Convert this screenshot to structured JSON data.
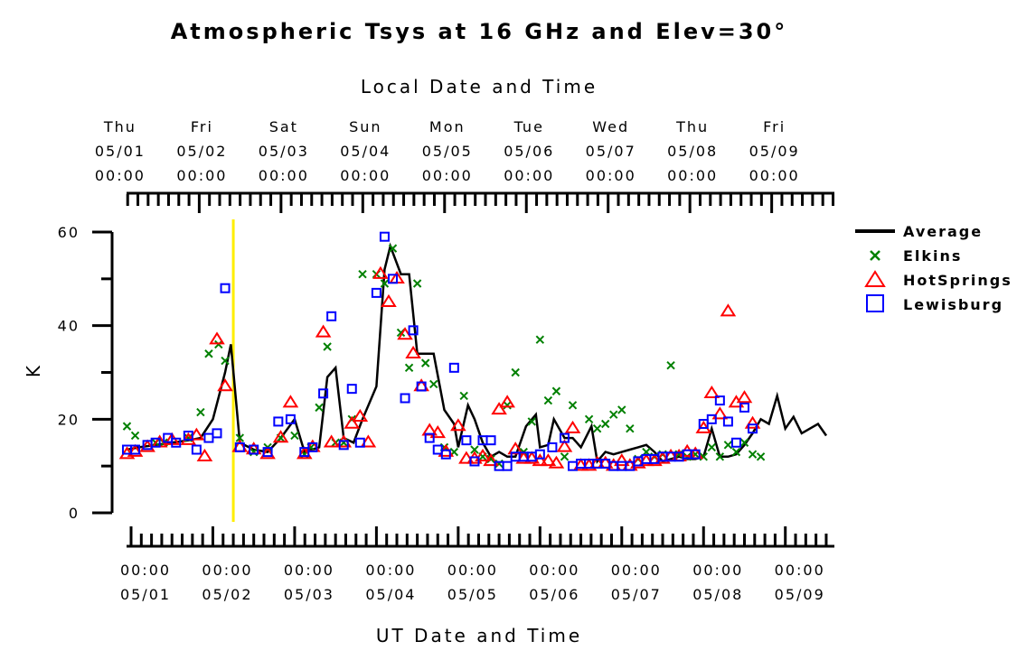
{
  "chart_data": {
    "type": "line",
    "title": "Atmospheric Tsys at 16 GHz and Elev=30°",
    "top_xlabel": "Local Date and Time",
    "xlabel": "UT Date and Time",
    "ylabel": "K",
    "ylim": [
      0,
      60
    ],
    "yticks": [
      0,
      20,
      40,
      60
    ],
    "xlim": [
      0,
      8.6
    ],
    "top_offset_days": -0.1667,
    "marker_x": 1.25,
    "marker_color": "#ffee00",
    "top_ticks": [
      {
        "x": 0,
        "day": "Thu",
        "date": "05/01",
        "time": "00:00"
      },
      {
        "x": 1,
        "day": "Fri",
        "date": "05/02",
        "time": "00:00"
      },
      {
        "x": 2,
        "day": "Sat",
        "date": "05/03",
        "time": "00:00"
      },
      {
        "x": 3,
        "day": "Sun",
        "date": "05/04",
        "time": "00:00"
      },
      {
        "x": 4,
        "day": "Mon",
        "date": "05/05",
        "time": "00:00"
      },
      {
        "x": 5,
        "day": "Tue",
        "date": "05/06",
        "time": "00:00"
      },
      {
        "x": 6,
        "day": "Wed",
        "date": "05/07",
        "time": "00:00"
      },
      {
        "x": 7,
        "day": "Thu",
        "date": "05/08",
        "time": "00:00"
      },
      {
        "x": 8,
        "day": "Fri",
        "date": "05/09",
        "time": "00:00"
      }
    ],
    "bottom_ticks": [
      {
        "x": 0,
        "time": "00:00",
        "date": "05/01"
      },
      {
        "x": 1,
        "time": "00:00",
        "date": "05/02"
      },
      {
        "x": 2,
        "time": "00:00",
        "date": "05/03"
      },
      {
        "x": 3,
        "time": "00:00",
        "date": "05/04"
      },
      {
        "x": 4,
        "time": "00:00",
        "date": "05/05"
      },
      {
        "x": 5,
        "time": "00:00",
        "date": "05/06"
      },
      {
        "x": 6,
        "time": "00:00",
        "date": "05/07"
      },
      {
        "x": 7,
        "time": "00:00",
        "date": "05/08"
      },
      {
        "x": 8,
        "time": "00:00",
        "date": "05/09"
      }
    ],
    "legend_position": "right",
    "series": [
      {
        "name": "Average",
        "style": "line",
        "color": "#000000",
        "points": [
          [
            -0.05,
            13.5
          ],
          [
            0.1,
            14
          ],
          [
            0.3,
            14.5
          ],
          [
            0.5,
            15
          ],
          [
            0.7,
            15.5
          ],
          [
            0.85,
            16
          ],
          [
            1.0,
            20
          ],
          [
            1.15,
            30
          ],
          [
            1.22,
            36
          ],
          [
            1.33,
            15
          ],
          [
            1.5,
            13.5
          ],
          [
            1.67,
            13
          ],
          [
            1.83,
            16
          ],
          [
            2.0,
            20
          ],
          [
            2.12,
            13
          ],
          [
            2.3,
            14
          ],
          [
            2.4,
            29
          ],
          [
            2.5,
            31
          ],
          [
            2.6,
            16
          ],
          [
            2.72,
            15
          ],
          [
            2.83,
            20
          ],
          [
            3.0,
            27
          ],
          [
            3.1,
            52
          ],
          [
            3.17,
            57
          ],
          [
            3.3,
            51
          ],
          [
            3.4,
            51
          ],
          [
            3.5,
            34
          ],
          [
            3.6,
            34
          ],
          [
            3.7,
            34
          ],
          [
            3.83,
            22
          ],
          [
            3.95,
            19
          ],
          [
            4.0,
            14
          ],
          [
            4.12,
            23
          ],
          [
            4.2,
            20
          ],
          [
            4.3,
            15
          ],
          [
            4.4,
            12
          ],
          [
            4.5,
            13
          ],
          [
            4.6,
            12
          ],
          [
            4.7,
            12
          ],
          [
            4.83,
            18.5
          ],
          [
            4.95,
            21
          ],
          [
            5.0,
            14
          ],
          [
            5.1,
            14.5
          ],
          [
            5.17,
            20
          ],
          [
            5.3,
            16
          ],
          [
            5.4,
            16
          ],
          [
            5.5,
            14
          ],
          [
            5.63,
            18.5
          ],
          [
            5.7,
            11
          ],
          [
            5.8,
            13
          ],
          [
            5.9,
            12.5
          ],
          [
            6.0,
            13
          ],
          [
            6.1,
            13.5
          ],
          [
            6.2,
            14
          ],
          [
            6.3,
            14.5
          ],
          [
            6.4,
            13
          ],
          [
            6.5,
            11
          ],
          [
            6.6,
            11.5
          ],
          [
            6.7,
            12
          ],
          [
            6.8,
            11.5
          ],
          [
            6.9,
            11.5
          ],
          [
            7.0,
            12
          ],
          [
            7.1,
            18
          ],
          [
            7.2,
            12
          ],
          [
            7.3,
            12
          ],
          [
            7.4,
            12.5
          ],
          [
            7.5,
            14.5
          ],
          [
            7.6,
            17
          ],
          [
            7.7,
            20
          ],
          [
            7.8,
            19
          ],
          [
            7.9,
            25
          ],
          [
            8.0,
            18
          ],
          [
            8.1,
            20.5
          ],
          [
            8.2,
            17
          ],
          [
            8.3,
            18
          ],
          [
            8.4,
            19
          ],
          [
            8.5,
            16.5
          ]
        ]
      },
      {
        "name": "Elkins",
        "style": "x",
        "color": "#008000",
        "points": [
          [
            -0.05,
            18.5
          ],
          [
            0.05,
            16.5
          ],
          [
            0.3,
            15
          ],
          [
            0.4,
            15
          ],
          [
            0.7,
            16
          ],
          [
            0.85,
            21.5
          ],
          [
            0.95,
            34
          ],
          [
            1.07,
            36
          ],
          [
            1.15,
            32.5
          ],
          [
            1.33,
            16
          ],
          [
            1.5,
            13
          ],
          [
            1.67,
            14
          ],
          [
            1.83,
            16
          ],
          [
            2.0,
            16.5
          ],
          [
            2.12,
            12.5
          ],
          [
            2.2,
            14
          ],
          [
            2.3,
            22.5
          ],
          [
            2.4,
            35.5
          ],
          [
            2.5,
            15
          ],
          [
            2.6,
            15
          ],
          [
            2.7,
            20
          ],
          [
            2.83,
            51
          ],
          [
            3.0,
            51
          ],
          [
            3.1,
            49
          ],
          [
            3.2,
            56.5
          ],
          [
            3.3,
            38.5
          ],
          [
            3.4,
            31
          ],
          [
            3.5,
            49
          ],
          [
            3.6,
            32
          ],
          [
            3.7,
            27.5
          ],
          [
            3.83,
            14
          ],
          [
            3.95,
            13
          ],
          [
            4.07,
            25
          ],
          [
            4.2,
            13.5
          ],
          [
            4.3,
            12
          ],
          [
            4.4,
            11.5
          ],
          [
            4.5,
            10.5
          ],
          [
            4.6,
            23
          ],
          [
            4.7,
            30
          ],
          [
            4.8,
            13
          ],
          [
            4.9,
            19.5
          ],
          [
            5.0,
            37
          ],
          [
            5.1,
            24
          ],
          [
            5.2,
            26
          ],
          [
            5.3,
            12
          ],
          [
            5.4,
            23
          ],
          [
            5.6,
            20
          ],
          [
            5.7,
            18
          ],
          [
            5.8,
            19
          ],
          [
            5.9,
            21
          ],
          [
            6.0,
            22
          ],
          [
            6.1,
            18
          ],
          [
            6.2,
            11.5
          ],
          [
            6.3,
            13
          ],
          [
            6.4,
            12
          ],
          [
            6.5,
            12.5
          ],
          [
            6.6,
            31.5
          ],
          [
            6.7,
            12.5
          ],
          [
            6.8,
            12
          ],
          [
            6.9,
            12.5
          ],
          [
            7.0,
            12
          ],
          [
            7.1,
            14
          ],
          [
            7.2,
            12
          ],
          [
            7.3,
            14.5
          ],
          [
            7.4,
            13
          ],
          [
            7.5,
            15
          ],
          [
            7.6,
            12.5
          ],
          [
            7.7,
            12
          ]
        ]
      },
      {
        "name": "HotSprings",
        "style": "triangle",
        "color": "#ff0000",
        "points": [
          [
            -0.05,
            12.5
          ],
          [
            0.05,
            13
          ],
          [
            0.2,
            14
          ],
          [
            0.35,
            15
          ],
          [
            0.5,
            15.5
          ],
          [
            0.7,
            15.5
          ],
          [
            0.8,
            16.5
          ],
          [
            0.9,
            12
          ],
          [
            1.05,
            37
          ],
          [
            1.15,
            27
          ],
          [
            1.33,
            14
          ],
          [
            1.5,
            13.5
          ],
          [
            1.67,
            12.5
          ],
          [
            1.83,
            16
          ],
          [
            1.95,
            23.5
          ],
          [
            2.12,
            12.5
          ],
          [
            2.22,
            14
          ],
          [
            2.35,
            38.5
          ],
          [
            2.45,
            15
          ],
          [
            2.6,
            15
          ],
          [
            2.7,
            19
          ],
          [
            2.8,
            20.5
          ],
          [
            2.9,
            15
          ],
          [
            3.05,
            51
          ],
          [
            3.15,
            45
          ],
          [
            3.25,
            50
          ],
          [
            3.35,
            38
          ],
          [
            3.45,
            34
          ],
          [
            3.55,
            27
          ],
          [
            3.65,
            17.5
          ],
          [
            3.75,
            17
          ],
          [
            3.85,
            13
          ],
          [
            4.0,
            18.5
          ],
          [
            4.1,
            11.5
          ],
          [
            4.2,
            11.5
          ],
          [
            4.3,
            12
          ],
          [
            4.4,
            11
          ],
          [
            4.5,
            22
          ],
          [
            4.6,
            23.5
          ],
          [
            4.7,
            13.5
          ],
          [
            4.8,
            11.5
          ],
          [
            4.9,
            11.5
          ],
          [
            5.0,
            11
          ],
          [
            5.1,
            11
          ],
          [
            5.2,
            10.5
          ],
          [
            5.3,
            14
          ],
          [
            5.4,
            18
          ],
          [
            5.5,
            10
          ],
          [
            5.6,
            10
          ],
          [
            5.7,
            10.5
          ],
          [
            5.8,
            10.5
          ],
          [
            5.9,
            10
          ],
          [
            6.0,
            11
          ],
          [
            6.1,
            10
          ],
          [
            6.2,
            10.5
          ],
          [
            6.3,
            11
          ],
          [
            6.4,
            11
          ],
          [
            6.5,
            11.5
          ],
          [
            6.6,
            12
          ],
          [
            6.7,
            12
          ],
          [
            6.8,
            13
          ],
          [
            6.9,
            12.5
          ],
          [
            7.0,
            18
          ],
          [
            7.1,
            25.5
          ],
          [
            7.2,
            21
          ],
          [
            7.3,
            43
          ],
          [
            7.4,
            23.5
          ],
          [
            7.5,
            24.5
          ],
          [
            7.6,
            19
          ]
        ]
      },
      {
        "name": "Lewisburg",
        "style": "square",
        "color": "#0000ff",
        "points": [
          [
            -0.05,
            13.5
          ],
          [
            0.05,
            13.5
          ],
          [
            0.2,
            14.5
          ],
          [
            0.3,
            15
          ],
          [
            0.45,
            16
          ],
          [
            0.55,
            15
          ],
          [
            0.7,
            16.5
          ],
          [
            0.8,
            13.5
          ],
          [
            0.95,
            16
          ],
          [
            1.05,
            17
          ],
          [
            1.15,
            48
          ],
          [
            1.33,
            14
          ],
          [
            1.5,
            13.5
          ],
          [
            1.67,
            13
          ],
          [
            1.8,
            19.5
          ],
          [
            1.95,
            20
          ],
          [
            2.12,
            13
          ],
          [
            2.22,
            14
          ],
          [
            2.35,
            25.5
          ],
          [
            2.45,
            42
          ],
          [
            2.6,
            14.5
          ],
          [
            2.7,
            26.5
          ],
          [
            2.8,
            15
          ],
          [
            3.0,
            47
          ],
          [
            3.1,
            59
          ],
          [
            3.2,
            50
          ],
          [
            3.35,
            24.5
          ],
          [
            3.45,
            39
          ],
          [
            3.55,
            27
          ],
          [
            3.65,
            16
          ],
          [
            3.75,
            13.5
          ],
          [
            3.85,
            12.5
          ],
          [
            3.95,
            31
          ],
          [
            4.1,
            15.5
          ],
          [
            4.2,
            11
          ],
          [
            4.3,
            15.5
          ],
          [
            4.4,
            15.5
          ],
          [
            4.5,
            10
          ],
          [
            4.6,
            10
          ],
          [
            4.7,
            12
          ],
          [
            4.8,
            12
          ],
          [
            4.9,
            12
          ],
          [
            5.0,
            12.5
          ],
          [
            5.15,
            14
          ],
          [
            5.3,
            16
          ],
          [
            5.4,
            10
          ],
          [
            5.5,
            10.5
          ],
          [
            5.6,
            10.5
          ],
          [
            5.7,
            10.5
          ],
          [
            5.8,
            10.5
          ],
          [
            5.9,
            10
          ],
          [
            6.0,
            10
          ],
          [
            6.1,
            10
          ],
          [
            6.2,
            11
          ],
          [
            6.3,
            11.5
          ],
          [
            6.4,
            11.5
          ],
          [
            6.5,
            12
          ],
          [
            6.6,
            12
          ],
          [
            6.7,
            12
          ],
          [
            6.8,
            12.5
          ],
          [
            6.9,
            12.5
          ],
          [
            7.0,
            19
          ],
          [
            7.1,
            20
          ],
          [
            7.2,
            24
          ],
          [
            7.3,
            19.5
          ],
          [
            7.4,
            15
          ],
          [
            7.5,
            22.5
          ],
          [
            7.6,
            18
          ]
        ]
      }
    ]
  }
}
